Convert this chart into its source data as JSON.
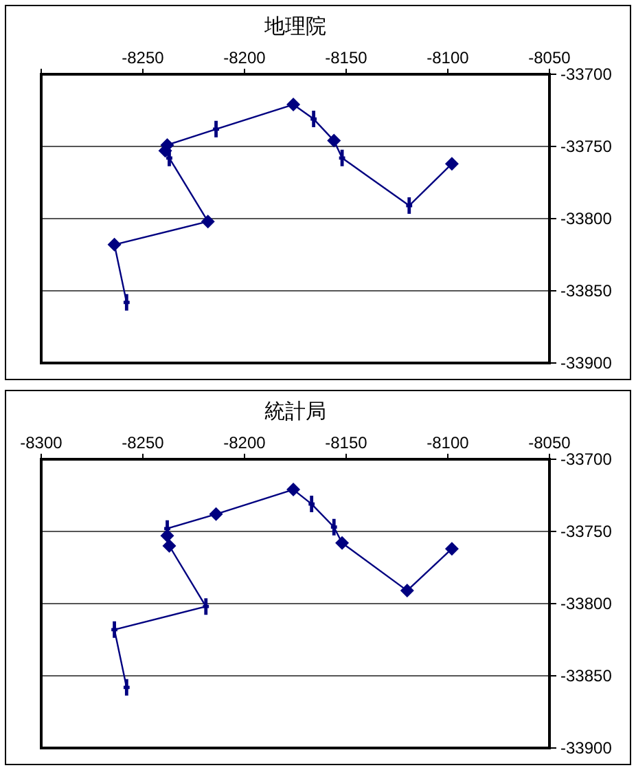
{
  "chart_data": [
    {
      "type": "line",
      "title": "地理院",
      "xlim": [
        -8300,
        -8050
      ],
      "ylim": [
        -33900,
        -33700
      ],
      "xticks": [
        {
          "value": -8300,
          "label": null
        },
        -8250,
        -8200,
        -8150,
        -8100,
        -8050
      ],
      "yticks": [
        -33900,
        -33850,
        -33800,
        -33750,
        -33700
      ],
      "grid": "y",
      "series": [
        {
          "type": "line",
          "marker": "none",
          "color": "#000080",
          "x": [
            -8258,
            -8264,
            -8218,
            -8237,
            -8239,
            -8238,
            -8214,
            -8176,
            -8166,
            -8156,
            -8152,
            -8119,
            -8098
          ],
          "values": [
            -33858,
            -33818,
            -33802,
            -33758,
            -33753,
            -33749,
            -33738,
            -33721,
            -33731,
            -33746,
            -33758,
            -33791,
            -33762
          ]
        },
        {
          "type": "scatter",
          "marker": "diamond",
          "color": "#000080",
          "x": [
            -8264,
            -8218,
            -8239,
            -8238,
            -8176,
            -8156,
            -8098
          ],
          "values": [
            -33818,
            -33802,
            -33753,
            -33749,
            -33721,
            -33746,
            -33762
          ]
        },
        {
          "type": "scatter",
          "marker": "cross",
          "color": "#000080",
          "x": [
            -8258,
            -8237,
            -8214,
            -8166,
            -8152,
            -8119
          ],
          "values": [
            -33858,
            -33758,
            -33738,
            -33731,
            -33758,
            -33791
          ]
        }
      ]
    },
    {
      "type": "line",
      "title": "統計局",
      "xlim": [
        -8300,
        -8050
      ],
      "ylim": [
        -33900,
        -33700
      ],
      "xticks": [
        -8300,
        -8250,
        -8200,
        -8150,
        -8100,
        -8050
      ],
      "yticks": [
        -33900,
        -33850,
        -33800,
        -33750,
        -33700
      ],
      "grid": "y",
      "series": [
        {
          "type": "line",
          "marker": "none",
          "color": "#000080",
          "x": [
            -8258,
            -8264,
            -8219,
            -8237,
            -8238,
            -8238,
            -8214,
            -8176,
            -8167,
            -8156,
            -8152,
            -8120,
            -8098
          ],
          "values": [
            -33858,
            -33818,
            -33802,
            -33760,
            -33753,
            -33748,
            -33738,
            -33721,
            -33731,
            -33747,
            -33758,
            -33791,
            -33762
          ]
        },
        {
          "type": "scatter",
          "marker": "diamond",
          "color": "#000080",
          "x": [
            -8237,
            -8238,
            -8214,
            -8176,
            -8152,
            -8120,
            -8098
          ],
          "values": [
            -33760,
            -33753,
            -33738,
            -33721,
            -33758,
            -33791,
            -33762
          ]
        },
        {
          "type": "scatter",
          "marker": "cross",
          "color": "#000080",
          "x": [
            -8258,
            -8264,
            -8219,
            -8238,
            -8167,
            -8156
          ],
          "values": [
            -33858,
            -33818,
            -33802,
            -33748,
            -33731,
            -33747
          ]
        }
      ]
    }
  ]
}
